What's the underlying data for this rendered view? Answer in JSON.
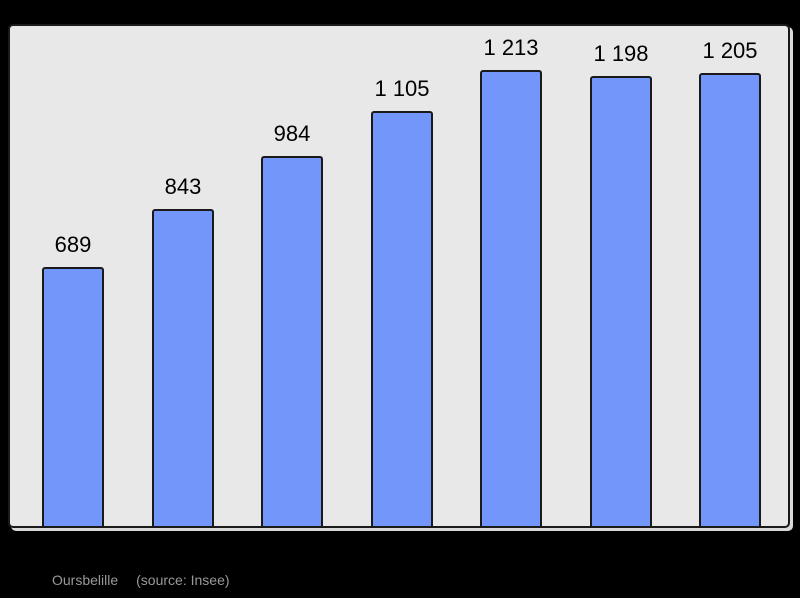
{
  "page": {
    "background_color": "#000000"
  },
  "caption": {
    "title": "Oursbelille",
    "source": "(source: Insee)",
    "color": "#999999"
  },
  "chart_data": {
    "type": "bar",
    "values": [
      689,
      843,
      984,
      1105,
      1213,
      1198,
      1205
    ],
    "labels": [
      "689",
      "843",
      "984",
      "1 105",
      "1 213",
      "1 198",
      "1 205"
    ],
    "title": "",
    "xlabel": "",
    "ylabel": "",
    "ylim": [
      0,
      1330
    ],
    "grid": false,
    "legend": false,
    "data_labels_position": "above-bars",
    "bar_color": "#7396fa",
    "bar_border_color": "#1a1a1a",
    "plot_background": "#e8e8e8",
    "plot_border_color": "#1a1a1a",
    "label_color": "#000000"
  }
}
